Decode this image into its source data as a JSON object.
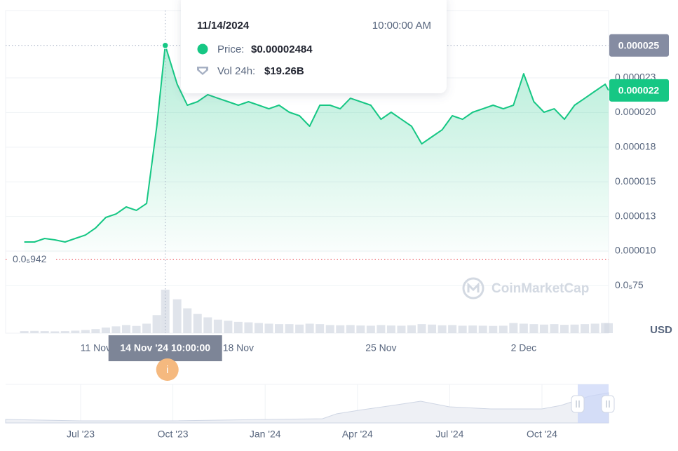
{
  "chart_data": {
    "type": "line",
    "x": [
      "2024-11-07 12:00",
      "2024-11-08 00:00",
      "2024-11-08 12:00",
      "2024-11-09 00:00",
      "2024-11-09 12:00",
      "2024-11-10 00:00",
      "2024-11-10 12:00",
      "2024-11-11 00:00",
      "2024-11-11 12:00",
      "2024-11-12 00:00",
      "2024-11-12 12:00",
      "2024-11-13 00:00",
      "2024-11-13 12:00",
      "2024-11-14 00:00",
      "2024-11-14 10:00",
      "2024-11-15 00:00",
      "2024-11-15 12:00",
      "2024-11-16 00:00",
      "2024-11-16 12:00",
      "2024-11-17 00:00",
      "2024-11-17 12:00",
      "2024-11-18 00:00",
      "2024-11-18 12:00",
      "2024-11-19 00:00",
      "2024-11-19 12:00",
      "2024-11-20 00:00",
      "2024-11-20 12:00",
      "2024-11-21 00:00",
      "2024-11-21 12:00",
      "2024-11-22 00:00",
      "2024-11-22 12:00",
      "2024-11-23 00:00",
      "2024-11-23 12:00",
      "2024-11-24 00:00",
      "2024-11-24 12:00",
      "2024-11-25 00:00",
      "2024-11-25 12:00",
      "2024-11-26 00:00",
      "2024-11-26 12:00",
      "2024-11-27 00:00",
      "2024-11-27 12:00",
      "2024-11-28 00:00",
      "2024-11-28 12:00",
      "2024-11-29 00:00",
      "2024-11-29 12:00",
      "2024-11-30 00:00",
      "2024-11-30 12:00",
      "2024-12-01 00:00",
      "2024-12-01 12:00",
      "2024-12-02 00:00",
      "2024-12-02 12:00",
      "2024-12-03 00:00",
      "2024-12-03 12:00",
      "2024-12-04 00:00",
      "2024-12-04 12:00",
      "2024-12-05 00:00",
      "2024-12-05 12:00",
      "2024-12-06 00:00",
      "2024-12-06 04:00"
    ],
    "series": [
      {
        "name": "Price:",
        "color": "#16c784",
        "values": [
          1.066e-05,
          1.066e-05,
          1.091e-05,
          1.081e-05,
          1.066e-05,
          1.091e-05,
          1.116e-05,
          1.167e-05,
          1.243e-05,
          1.268e-05,
          1.319e-05,
          1.294e-05,
          1.344e-05,
          1.901e-05,
          2.484e-05,
          2.204e-05,
          2.053e-05,
          2.078e-05,
          2.129e-05,
          2.103e-05,
          2.078e-05,
          2.053e-05,
          2.078e-05,
          2.053e-05,
          2.027e-05,
          2.053e-05,
          2.002e-05,
          1.977e-05,
          1.901e-05,
          2.053e-05,
          2.053e-05,
          2.027e-05,
          2.103e-05,
          2.078e-05,
          2.053e-05,
          1.951e-05,
          2.002e-05,
          1.951e-05,
          1.901e-05,
          1.774e-05,
          1.825e-05,
          1.875e-05,
          1.977e-05,
          1.951e-05,
          2.002e-05,
          2.027e-05,
          2.053e-05,
          2.027e-05,
          2.053e-05,
          2.28e-05,
          2.078e-05,
          2.002e-05,
          2.027e-05,
          1.951e-05,
          2.053e-05,
          2.103e-05,
          2.154e-05,
          2.204e-05,
          2.16e-05
        ],
        "value_labels": [
          null,
          null,
          null,
          null,
          null,
          null,
          null,
          null,
          null,
          null,
          null,
          null,
          null,
          null,
          "$0.00002484",
          null,
          null,
          null,
          null,
          null,
          null,
          null,
          null,
          null,
          null,
          null,
          null,
          null,
          null,
          null,
          null,
          null,
          null,
          null,
          null,
          null,
          null,
          null,
          null,
          null,
          null,
          null,
          null,
          null,
          null,
          null,
          null,
          null,
          null,
          null,
          null,
          null,
          null,
          null,
          null,
          null,
          null,
          null,
          "0.000022"
        ]
      },
      {
        "name": "Vol 24h:",
        "color": "#d6dbe4",
        "values": [
          900000000,
          1000000000,
          900000000,
          800000000,
          900000000,
          1100000000,
          1400000000,
          1800000000,
          2500000000,
          3000000000,
          3600000000,
          3200000000,
          4200000000,
          8000000000,
          19260000000,
          15000000000,
          11000000000,
          8500000000,
          7000000000,
          6000000000,
          5500000000,
          5000000000,
          4800000000,
          4500000000,
          4200000000,
          4000000000,
          4000000000,
          3800000000,
          4200000000,
          4000000000,
          3600000000,
          3500000000,
          3600000000,
          3400000000,
          3300000000,
          3600000000,
          3400000000,
          3300000000,
          3500000000,
          4000000000,
          3800000000,
          3500000000,
          3600000000,
          3300000000,
          3400000000,
          3300000000,
          3200000000,
          3300000000,
          4500000000,
          4200000000,
          4000000000,
          3800000000,
          4000000000,
          3700000000,
          3800000000,
          4000000000,
          4200000000,
          4500000000,
          4400000000
        ],
        "value_labels": [
          null,
          null,
          null,
          null,
          null,
          null,
          null,
          null,
          null,
          null,
          null,
          null,
          null,
          null,
          "$19.26B",
          null,
          null,
          null,
          null,
          null,
          null,
          null,
          null,
          null,
          null,
          null,
          null,
          null,
          null,
          null,
          null,
          null,
          null,
          null,
          null,
          null,
          null,
          null,
          null,
          null,
          null,
          null,
          null,
          null,
          null,
          null,
          null,
          null,
          null,
          null,
          null,
          null,
          null,
          null,
          null,
          null,
          null,
          null,
          null
        ]
      }
    ],
    "xlim": [
      "2024-11-06 14:00",
      "2024-12-06 04:00"
    ],
    "xticks": [
      {
        "value": "2024-11-11 00:00",
        "label": "11 Nov"
      },
      {
        "value": "2024-11-18 00:00",
        "label": "18 Nov"
      },
      {
        "value": "2024-11-25 00:00",
        "label": "25 Nov"
      },
      {
        "value": "2024-12-02 00:00",
        "label": "2 Dec"
      }
    ],
    "ylim": [
      4.08e-06,
      2.736e-05
    ],
    "yticks": [
      {
        "value": 7.5e-06,
        "label": "0.0₅75"
      },
      {
        "value": 1e-05,
        "label": "0.000010"
      },
      {
        "value": 1.25e-05,
        "label": "0.000013"
      },
      {
        "value": 1.5e-05,
        "label": "0.000015"
      },
      {
        "value": 1.75e-05,
        "label": "0.000018"
      },
      {
        "value": 2e-05,
        "label": "0.000020"
      },
      {
        "value": 2.25e-05,
        "label": "0.000023"
      }
    ],
    "grid": true,
    "currency": "USD",
    "reference_line": {
      "value": 9.42e-06,
      "label": "0.0₅942"
    },
    "max_marker": {
      "value": 2.484e-05,
      "label": "0.000025"
    },
    "crosshair": {
      "x": "2024-11-14 10:00",
      "label": "14 Nov '24 10:00:00",
      "index": 14
    },
    "tooltip": {
      "date": "11/14/2024",
      "time": "10:00:00 AM"
    },
    "watermark": "CoinMarketCap",
    "info_icon": "i",
    "navigator": {
      "labels": [
        "Jul '23",
        "Oct '23",
        "Jan '24",
        "Apr '24",
        "Jul '24",
        "Oct '24"
      ]
    }
  }
}
